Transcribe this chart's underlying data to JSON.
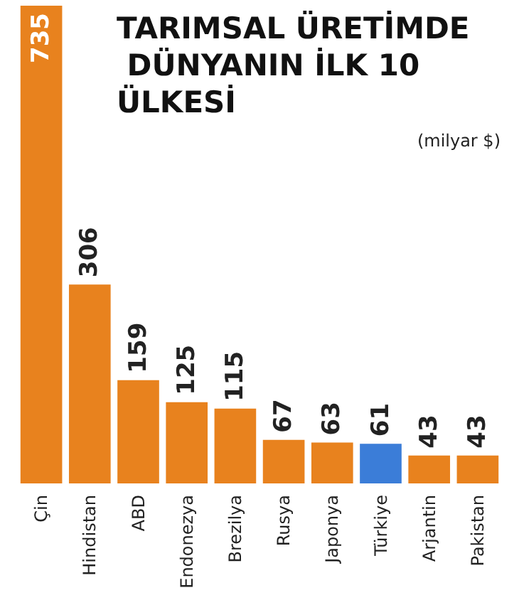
{
  "chart_data": {
    "type": "bar",
    "title": "TARIMSAL ÜRETİMDE DÜNYANIN İLK 10 ÜLKESİ",
    "subtitle": "(milyar $)",
    "categories": [
      "Çin",
      "Hindistan",
      "ABD",
      "Endonezya",
      "Brezilya",
      "Rusya",
      "Japonya",
      "Türkiye",
      "Arjantin",
      "Pakistan"
    ],
    "values": [
      735,
      306,
      159,
      125,
      115,
      67,
      63,
      61,
      43,
      43
    ],
    "colors": [
      "#e8821e",
      "#e8821e",
      "#e8821e",
      "#e8821e",
      "#e8821e",
      "#e8821e",
      "#e8821e",
      "#3b7dd8",
      "#e8821e",
      "#e8821e"
    ],
    "data_labels": true
  }
}
